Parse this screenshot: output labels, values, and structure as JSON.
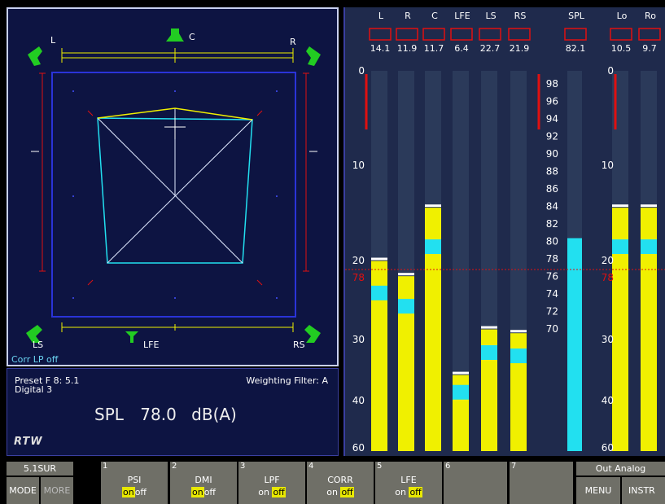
{
  "surround": {
    "labels": {
      "L": "L",
      "C": "C",
      "R": "R",
      "LS": "LS",
      "LFE": "LFE",
      "RS": "RS"
    },
    "corr_text": "Corr LP off"
  },
  "info": {
    "preset": "Preset F 8: 5.1",
    "source": "Digital 3",
    "weighting": "Weighting Filter: A",
    "spl_label": "SPL",
    "spl_value": "78.0",
    "spl_unit": "dB(A)",
    "logo": "RTW"
  },
  "meters": {
    "channels": [
      {
        "name": "L",
        "peak": "14.1",
        "level": 0.5
      },
      {
        "name": "R",
        "peak": "11.9",
        "level": 0.46
      },
      {
        "name": "C",
        "peak": "11.7",
        "level": 0.64
      },
      {
        "name": "LFE",
        "peak": "6.4",
        "level": 0.2
      },
      {
        "name": "LS",
        "peak": "22.7",
        "level": 0.32
      },
      {
        "name": "RS",
        "peak": "21.9",
        "level": 0.31
      },
      {
        "name": "SPL",
        "peak": "82.1",
        "level": 0.56
      },
      {
        "name": "Lo",
        "peak": "10.5",
        "level": 0.64
      },
      {
        "name": "Ro",
        "peak": "9.7",
        "level": 0.64
      }
    ],
    "scale_db": [
      "0",
      "10",
      "20",
      "78",
      "30",
      "40",
      "60"
    ],
    "scale_spl": [
      "98",
      "96",
      "94",
      "92",
      "90",
      "88",
      "86",
      "84",
      "82",
      "80",
      "78",
      "76",
      "74",
      "72",
      "70"
    ]
  },
  "softkeys": {
    "top": [
      {
        "num": "",
        "label": "5.1SUR"
      },
      {
        "num": "1",
        "label": "PSI"
      },
      {
        "num": "2",
        "label": "DMI"
      },
      {
        "num": "3",
        "label": "LPF"
      },
      {
        "num": "4",
        "label": "CORR"
      },
      {
        "num": "5",
        "label": "LFE"
      },
      {
        "num": "6",
        "label": ""
      },
      {
        "num": "7",
        "label": ""
      },
      {
        "num": "",
        "label": "Out Analog"
      }
    ],
    "mode": "MODE",
    "more": "MORE",
    "menu": "MENU",
    "instr": "INSTR",
    "on": "on",
    "off": "off"
  },
  "colors": {
    "yellow": "#f0f000",
    "cyan": "#22e0f0",
    "red": "#e01010",
    "green": "#22cc22",
    "panel": "#0d1442"
  }
}
